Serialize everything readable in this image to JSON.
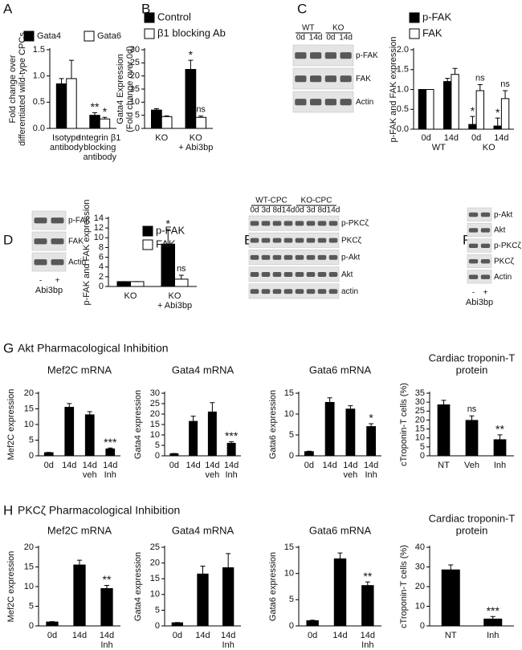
{
  "chart_data": [
    {
      "type": "bar",
      "panel": "A",
      "ylabel": [
        "Fold change over",
        "differentiated wild-type CPCs"
      ],
      "categories": [
        [
          "Isotype",
          "antibody"
        ],
        [
          "Integrin β1",
          "blocking",
          "antibody"
        ]
      ],
      "series": [
        {
          "name": "Gata4",
          "color": "#000000",
          "values": [
            0.85,
            0.25
          ],
          "errors": [
            0.1,
            0.05
          ],
          "annotations": [
            null,
            "**"
          ]
        },
        {
          "name": "Gata6",
          "color": "#ffffff",
          "values": [
            0.95,
            0.18
          ],
          "errors": [
            0.35,
            0.03
          ],
          "annotations": [
            null,
            "*"
          ]
        }
      ],
      "ylim": [
        0,
        1.5
      ],
      "yticks": [
        {
          "value": 0,
          "label": "0.0"
        },
        0.5,
        {
          "value": 1,
          "label": "1.0"
        },
        1.5
      ]
    },
    {
      "type": "bar",
      "panel": "B",
      "ylabel": [
        "Gata4 Expression",
        "(Fold change over 0d)"
      ],
      "categories": [
        [
          "KO"
        ],
        [
          "KO",
          "+ Abi3bp"
        ]
      ],
      "series": [
        {
          "name": "Control",
          "color": "#000000",
          "values": [
            7,
            22.5
          ],
          "errors": [
            0.5,
            3.5
          ],
          "annotations": [
            null,
            "*"
          ]
        },
        {
          "name": "β1 blocking Ab",
          "color": "#ffffff",
          "values": [
            4.5,
            4.2
          ],
          "errors": [
            0.3,
            0.5
          ],
          "annotations": [
            null,
            "ns"
          ]
        }
      ],
      "ylim": [
        0,
        30
      ],
      "yticks": [
        0,
        5,
        10,
        15,
        20,
        25,
        30
      ]
    },
    {
      "type": "bar",
      "ylabel": [
        "p-FAK and FAK expression"
      ],
      "categories": [
        [
          "0d"
        ],
        [
          "14d"
        ],
        [
          "0d"
        ],
        [
          "14d"
        ]
      ],
      "groups": [
        "WT",
        "KO"
      ],
      "series": [
        {
          "name": "p-FAK",
          "color": "#000000",
          "values": [
            1.0,
            1.2,
            0.12,
            0.08
          ],
          "errors": [
            0,
            0.08,
            0.2,
            0.2
          ],
          "annotations": [
            null,
            null,
            "*",
            "*"
          ]
        },
        {
          "name": "FAK",
          "color": "#ffffff",
          "values": [
            1.0,
            1.38,
            0.97,
            0.77
          ],
          "errors": [
            0,
            0.15,
            0.15,
            0.2
          ],
          "annotations": [
            null,
            null,
            "ns",
            "ns"
          ]
        }
      ],
      "ylim": [
        0,
        2
      ],
      "yticks": [
        {
          "value": 0,
          "label": "0.0"
        },
        0.5,
        {
          "value": 1,
          "label": "1.0"
        },
        1.5,
        {
          "value": 2,
          "label": "2.0"
        }
      ]
    },
    {
      "type": "bar",
      "ylabel": [
        "p-FAK and FAK expression"
      ],
      "categories": [
        [
          "KO"
        ],
        [
          "KO",
          "+ Abi3bp"
        ]
      ],
      "series": [
        {
          "name": "p-FAK",
          "color": "#000000",
          "values": [
            1.0,
            8.7
          ],
          "errors": [
            0,
            3
          ],
          "annotations": [
            null,
            "*"
          ]
        },
        {
          "name": "FAK",
          "color": "#ffffff",
          "values": [
            1.0,
            1.5
          ],
          "errors": [
            0,
            0.8
          ],
          "annotations": [
            null,
            "ns"
          ]
        }
      ],
      "ylim": [
        0,
        14
      ],
      "yticks": [
        0,
        2,
        4,
        6,
        8,
        10,
        12,
        14
      ]
    },
    {
      "type": "bar",
      "title": [
        "Mef2C mRNA"
      ],
      "ylabel": [
        "Mef2C expression"
      ],
      "categories": [
        [
          "0d"
        ],
        [
          "14d"
        ],
        [
          "14d",
          "veh"
        ],
        [
          "14d",
          "Inh"
        ]
      ],
      "series": [
        {
          "color": "#000000",
          "values": [
            1,
            15.5,
            13.1,
            2.2
          ],
          "errors": [
            0.1,
            1.2,
            1,
            0.3
          ],
          "annotations": [
            null,
            null,
            null,
            "***"
          ]
        }
      ],
      "ylim": [
        0,
        20
      ],
      "yticks": [
        0,
        5,
        10,
        15,
        20
      ]
    },
    {
      "type": "bar",
      "title": [
        "Gata4 mRNA"
      ],
      "ylabel": [
        "Gata4 expression"
      ],
      "categories": [
        [
          "0d"
        ],
        [
          "14d"
        ],
        [
          "14d",
          "veh"
        ],
        [
          "14d",
          "Inh"
        ]
      ],
      "series": [
        {
          "color": "#000000",
          "values": [
            1,
            16.5,
            21,
            6
          ],
          "errors": [
            0.1,
            2.5,
            4.5,
            0.8
          ],
          "annotations": [
            null,
            null,
            null,
            "***"
          ]
        }
      ],
      "ylim": [
        0,
        30
      ],
      "yticks": [
        0,
        5,
        10,
        15,
        20,
        25,
        30
      ]
    },
    {
      "type": "bar",
      "title": [
        "Gata6 mRNA"
      ],
      "ylabel": [
        "Gata6 expression"
      ],
      "categories": [
        [
          "0d"
        ],
        [
          "14d"
        ],
        [
          "14d",
          "veh"
        ],
        [
          "14d",
          "Inh"
        ]
      ],
      "series": [
        {
          "color": "#000000",
          "values": [
            1,
            12.8,
            11.2,
            7
          ],
          "errors": [
            0.1,
            1.1,
            0.8,
            0.7
          ],
          "annotations": [
            null,
            null,
            null,
            "*"
          ]
        }
      ],
      "ylim": [
        0,
        15
      ],
      "yticks": [
        0,
        5,
        10,
        15
      ]
    },
    {
      "type": "bar",
      "title": [
        "Cardiac troponin-T",
        "protein"
      ],
      "ylabel": [
        "cTroponin-T cells (%)"
      ],
      "categories": [
        [
          "NT"
        ],
        [
          "Veh"
        ],
        [
          "Inh"
        ]
      ],
      "series": [
        {
          "color": "#000000",
          "values": [
            28.5,
            19.8,
            9
          ],
          "errors": [
            2.5,
            2.5,
            2.7
          ],
          "annotations": [
            null,
            "ns",
            "**"
          ]
        }
      ],
      "ylim": [
        0,
        35
      ],
      "yticks": [
        0,
        5,
        10,
        15,
        20,
        25,
        30,
        35
      ]
    },
    {
      "type": "bar",
      "title": [
        "Mef2C mRNA"
      ],
      "ylabel": [
        "Mef2C expression"
      ],
      "categories": [
        [
          "0d"
        ],
        [
          "14d"
        ],
        [
          "14d",
          "Inh"
        ]
      ],
      "series": [
        {
          "color": "#000000",
          "values": [
            1,
            15.5,
            9.5
          ],
          "errors": [
            0.1,
            1.2,
            0.8
          ],
          "annotations": [
            null,
            null,
            "**"
          ]
        }
      ],
      "ylim": [
        0,
        20
      ],
      "yticks": [
        0,
        5,
        10,
        15,
        20
      ]
    },
    {
      "type": "bar",
      "title": [
        "Gata4 mRNA"
      ],
      "ylabel": [
        "Gata4 expression"
      ],
      "categories": [
        [
          "0d"
        ],
        [
          "14d"
        ],
        [
          "14d",
          "Inh"
        ]
      ],
      "series": [
        {
          "color": "#000000",
          "values": [
            1,
            16.5,
            18.5
          ],
          "errors": [
            0.1,
            2.5,
            4.5
          ]
        }
      ],
      "ylim": [
        0,
        25
      ],
      "yticks": [
        0,
        5,
        10,
        15,
        20,
        25
      ]
    },
    {
      "type": "bar",
      "title": [
        "Gata6 mRNA"
      ],
      "ylabel": [
        "Gata6 expression"
      ],
      "categories": [
        [
          "0d"
        ],
        [
          "14d"
        ],
        [
          "14d",
          "Inh"
        ]
      ],
      "series": [
        {
          "color": "#000000",
          "values": [
            1,
            12.8,
            7.7
          ],
          "errors": [
            0.1,
            1.1,
            0.7
          ],
          "annotations": [
            null,
            null,
            "**"
          ]
        }
      ],
      "ylim": [
        0,
        15
      ],
      "yticks": [
        0,
        5,
        10,
        15
      ]
    },
    {
      "type": "bar",
      "title": [
        "Cardiac troponin-T",
        "protein"
      ],
      "ylabel": [
        "cTroponin-T cells (%)"
      ],
      "categories": [
        [
          "NT"
        ],
        [
          "Inh"
        ]
      ],
      "series": [
        {
          "color": "#000000",
          "values": [
            28.5,
            3.5
          ],
          "errors": [
            2.5,
            1.3
          ],
          "annotations": [
            null,
            "***"
          ]
        }
      ],
      "ylim": [
        0,
        40
      ],
      "yticks": [
        0,
        10,
        20,
        30,
        40
      ]
    }
  ],
  "blots": [
    {
      "panel": "C",
      "lane_groups": [
        "WT",
        "KO"
      ],
      "lanes": [
        "0d",
        "14d",
        "0d",
        "14d"
      ],
      "rows": [
        "p-FAK",
        "FAK",
        "Actin"
      ]
    },
    {
      "panel": "D",
      "lanes": [
        "-",
        "+"
      ],
      "lane_caption": "Abi3bp",
      "rows": [
        "p-FAK",
        "FAK",
        "Actin"
      ]
    },
    {
      "panel": "E",
      "lane_groups": [
        "WT-CPC",
        "KO-CPC"
      ],
      "lanes": [
        "0d",
        "3d",
        "8d",
        "14d",
        "0d",
        "3d",
        "8d",
        "14d"
      ],
      "rows": [
        "p-PKCζ",
        "PKCζ",
        "p-Akt",
        "Akt",
        "actin"
      ]
    },
    {
      "panel": "F",
      "lanes": [
        "-",
        "+"
      ],
      "lane_caption": "Abi3bp",
      "rows": [
        "p-Akt",
        "Akt",
        "p-PKCζ",
        "PKCζ",
        "Actin"
      ]
    }
  ],
  "sections": [
    {
      "panel": "G",
      "title": "Akt Pharmacological Inhibition"
    },
    {
      "panel": "H",
      "title": "PKCζ Pharmacological Inhibition"
    }
  ]
}
